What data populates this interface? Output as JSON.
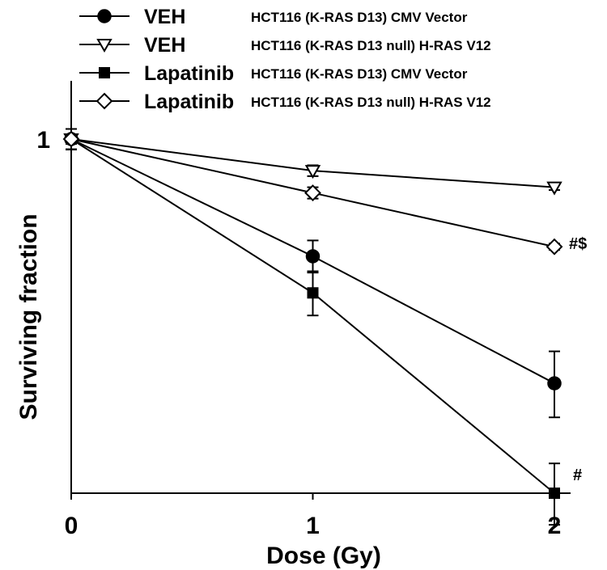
{
  "chart_data": {
    "type": "line",
    "xlabel": "Dose (Gy)",
    "ylabel": "Surviving fraction",
    "x": [
      0,
      1,
      2
    ],
    "x_tick_labels": [
      "0",
      "1",
      "2"
    ],
    "y_tick_labels": [
      "1"
    ],
    "xlim": [
      0,
      2
    ],
    "ylim": [
      0.5,
      1.0
    ],
    "y_scale": "log",
    "legend_position": "top",
    "series": [
      {
        "name": "VEH",
        "description": "HCT116 (K-RAS D13) CMV Vector",
        "marker": "filled-circle",
        "values": [
          1.0,
          0.795,
          0.62
        ],
        "errors": [
          0.02,
          0.025,
          0.04
        ]
      },
      {
        "name": "VEH",
        "description": "HCT116 (K-RAS D13 null) H-RAS V12",
        "marker": "open-triangle-down",
        "values": [
          1.0,
          0.94,
          0.91
        ],
        "errors": [
          0.02,
          0.01,
          0.005
        ]
      },
      {
        "name": "Lapatinib",
        "description": "HCT116 (K-RAS D13) CMV Vector",
        "marker": "filled-square",
        "values": [
          1.0,
          0.74,
          0.5
        ],
        "errors": [
          0.02,
          0.032,
          0.03
        ]
      },
      {
        "name": "Lapatinib",
        "description": "HCT116 (K-RAS D13 null) H-RAS V12",
        "marker": "open-diamond",
        "values": [
          1.0,
          0.9,
          0.81
        ],
        "errors": [
          0.02,
          0.01,
          0.005
        ]
      }
    ],
    "annotations": [
      {
        "text": "#$",
        "x": 2,
        "series_index": 3
      },
      {
        "text": "#",
        "x": 2,
        "series_index": 2
      }
    ]
  }
}
